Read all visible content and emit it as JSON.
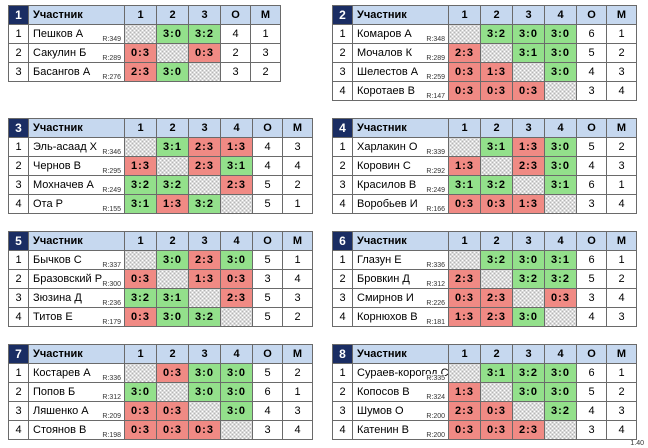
{
  "headers": {
    "name": "Участник",
    "points": "О",
    "place": "М"
  },
  "version": "1.40",
  "groups": [
    {
      "num": "1",
      "cols": [
        "1",
        "2",
        "3"
      ],
      "players": [
        {
          "idx": "1",
          "name": "Пешков А",
          "rating": "R:349",
          "cells": [
            "",
            "3:0",
            "3:2"
          ],
          "points": "4",
          "place": "1"
        },
        {
          "idx": "2",
          "name": "Сакулин Б",
          "rating": "R:289",
          "cells": [
            "0:3",
            "",
            "0:3"
          ],
          "points": "2",
          "place": "3"
        },
        {
          "idx": "3",
          "name": "Басангов А",
          "rating": "R:276",
          "cells": [
            "2:3",
            "3:0",
            ""
          ],
          "points": "3",
          "place": "2"
        }
      ]
    },
    {
      "num": "2",
      "cols": [
        "1",
        "2",
        "3",
        "4"
      ],
      "players": [
        {
          "idx": "1",
          "name": "Комаров А",
          "rating": "R:348",
          "cells": [
            "",
            "3:2",
            "3:0",
            "3:0"
          ],
          "points": "6",
          "place": "1"
        },
        {
          "idx": "2",
          "name": "Мочалов К",
          "rating": "R:289",
          "cells": [
            "2:3",
            "",
            "3:1",
            "3:0"
          ],
          "points": "5",
          "place": "2"
        },
        {
          "idx": "3",
          "name": "Шелестов А",
          "rating": "R:259",
          "cells": [
            "0:3",
            "1:3",
            "",
            "3:0"
          ],
          "points": "4",
          "place": "3"
        },
        {
          "idx": "4",
          "name": "Коротаев В",
          "rating": "R:147",
          "cells": [
            "0:3",
            "0:3",
            "0:3",
            ""
          ],
          "points": "3",
          "place": "4"
        }
      ]
    },
    {
      "num": "3",
      "cols": [
        "1",
        "2",
        "3",
        "4"
      ],
      "players": [
        {
          "idx": "1",
          "name": "Эль-асаад Х",
          "rating": "R:346",
          "cells": [
            "",
            "3:1",
            "2:3",
            "1:3"
          ],
          "points": "4",
          "place": "3"
        },
        {
          "idx": "2",
          "name": "Чернов В",
          "rating": "R:295",
          "cells": [
            "1:3",
            "",
            "2:3",
            "3:1"
          ],
          "points": "4",
          "place": "4"
        },
        {
          "idx": "3",
          "name": "Мохначев А",
          "rating": "R:249",
          "cells": [
            "3:2",
            "3:2",
            "",
            "2:3"
          ],
          "points": "5",
          "place": "2"
        },
        {
          "idx": "4",
          "name": "Ота Р",
          "rating": "R:155",
          "cells": [
            "3:1",
            "1:3",
            "3:2",
            ""
          ],
          "points": "5",
          "place": "1"
        }
      ]
    },
    {
      "num": "4",
      "cols": [
        "1",
        "2",
        "3",
        "4"
      ],
      "players": [
        {
          "idx": "1",
          "name": "Харлакин О",
          "rating": "R:339",
          "cells": [
            "",
            "3:1",
            "1:3",
            "3:0"
          ],
          "points": "5",
          "place": "2"
        },
        {
          "idx": "2",
          "name": "Коровин С",
          "rating": "R:292",
          "cells": [
            "1:3",
            "",
            "2:3",
            "3:0"
          ],
          "points": "4",
          "place": "3"
        },
        {
          "idx": "3",
          "name": "Красилов В",
          "rating": "R:249",
          "cells": [
            "3:1",
            "3:2",
            "",
            "3:1"
          ],
          "points": "6",
          "place": "1"
        },
        {
          "idx": "4",
          "name": "Воробьев И",
          "rating": "R:166",
          "cells": [
            "0:3",
            "0:3",
            "1:3",
            ""
          ],
          "points": "3",
          "place": "4"
        }
      ]
    },
    {
      "num": "5",
      "cols": [
        "1",
        "2",
        "3",
        "4"
      ],
      "players": [
        {
          "idx": "1",
          "name": "Бычков С",
          "rating": "R:337",
          "cells": [
            "",
            "3:0",
            "2:3",
            "3:0"
          ],
          "points": "5",
          "place": "1"
        },
        {
          "idx": "2",
          "name": "Бразовский Р",
          "rating": "R:300",
          "cells": [
            "0:3",
            "",
            "1:3",
            "0:3"
          ],
          "points": "3",
          "place": "4"
        },
        {
          "idx": "3",
          "name": "Зюзина Д",
          "rating": "R:236",
          "cells": [
            "3:2",
            "3:1",
            "",
            "2:3"
          ],
          "points": "5",
          "place": "3"
        },
        {
          "idx": "4",
          "name": "Титов Е",
          "rating": "R:179",
          "cells": [
            "0:3",
            "3:0",
            "3:2",
            ""
          ],
          "points": "5",
          "place": "2"
        }
      ]
    },
    {
      "num": "6",
      "cols": [
        "1",
        "2",
        "3",
        "4"
      ],
      "players": [
        {
          "idx": "1",
          "name": "Глазун Е",
          "rating": "R:336",
          "cells": [
            "",
            "3:2",
            "3:0",
            "3:1"
          ],
          "points": "6",
          "place": "1"
        },
        {
          "idx": "2",
          "name": "Бровкин Д",
          "rating": "R:312",
          "cells": [
            "2:3",
            "",
            "3:2",
            "3:2"
          ],
          "points": "5",
          "place": "2"
        },
        {
          "idx": "3",
          "name": "Смирнов И",
          "rating": "R:226",
          "cells": [
            "0:3",
            "2:3",
            "",
            "0:3"
          ],
          "points": "3",
          "place": "4"
        },
        {
          "idx": "4",
          "name": "Корнюхов В",
          "rating": "R:181",
          "cells": [
            "1:3",
            "2:3",
            "3:0",
            ""
          ],
          "points": "4",
          "place": "3"
        }
      ]
    },
    {
      "num": "7",
      "cols": [
        "1",
        "2",
        "3",
        "4"
      ],
      "players": [
        {
          "idx": "1",
          "name": "Костарев А",
          "rating": "R:336",
          "cells": [
            "",
            "0:3",
            "3:0",
            "3:0"
          ],
          "points": "5",
          "place": "2"
        },
        {
          "idx": "2",
          "name": "Попов Б",
          "rating": "R:312",
          "cells": [
            "3:0",
            "",
            "3:0",
            "3:0"
          ],
          "points": "6",
          "place": "1"
        },
        {
          "idx": "3",
          "name": "Ляшенко А",
          "rating": "R:209",
          "cells": [
            "0:3",
            "0:3",
            "",
            "3:0"
          ],
          "points": "4",
          "place": "3"
        },
        {
          "idx": "4",
          "name": "Стоянов В",
          "rating": "R:198",
          "cells": [
            "0:3",
            "0:3",
            "0:3",
            ""
          ],
          "points": "3",
          "place": "4"
        }
      ]
    },
    {
      "num": "8",
      "cols": [
        "1",
        "2",
        "3",
        "4"
      ],
      "players": [
        {
          "idx": "1",
          "name": "Сураев-корогод С",
          "rating": "R:335",
          "cells": [
            "",
            "3:1",
            "3:2",
            "3:0"
          ],
          "points": "6",
          "place": "1"
        },
        {
          "idx": "2",
          "name": "Копосов В",
          "rating": "R:324",
          "cells": [
            "1:3",
            "",
            "3:0",
            "3:0"
          ],
          "points": "5",
          "place": "2"
        },
        {
          "idx": "3",
          "name": "Шумов О",
          "rating": "R:200",
          "cells": [
            "2:3",
            "0:3",
            "",
            "3:2"
          ],
          "points": "4",
          "place": "3"
        },
        {
          "idx": "4",
          "name": "Катенин В",
          "rating": "R:200",
          "cells": [
            "0:3",
            "0:3",
            "2:3",
            ""
          ],
          "points": "3",
          "place": "4"
        }
      ]
    }
  ]
}
